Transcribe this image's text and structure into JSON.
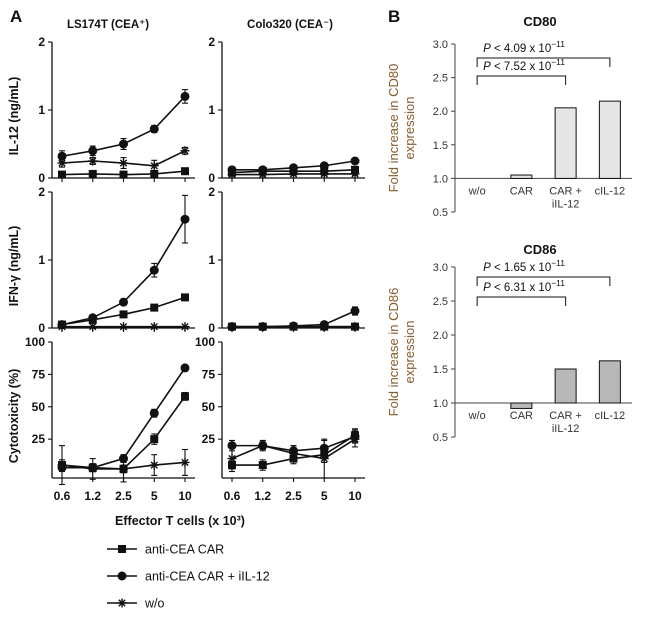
{
  "panel_a_label": "A",
  "panel_b_label": "B",
  "chart_data": [
    {
      "type": "line",
      "panel": "A",
      "column_titles": [
        "LS174T (CEA⁺)",
        "Colo320 (CEA⁻)"
      ],
      "x_ticks": [
        "0.6",
        "1.2",
        "2.5",
        "5",
        "10"
      ],
      "xlabel": "Effector T cells (x 10³)",
      "legend": [
        {
          "name": "anti-CEA CAR",
          "marker": "square"
        },
        {
          "name": "anti-CEA CAR + iIL-12",
          "marker": "circle"
        },
        {
          "name": "w/o",
          "marker": "star"
        }
      ],
      "rows": [
        {
          "ylabel": "IL-12 (ng/mL)",
          "ylim": [
            0,
            2
          ],
          "y_ticks": [
            "0",
            "1",
            "2"
          ],
          "y_tick_values": [
            0,
            1,
            2
          ],
          "panels": [
            {
              "series": [
                {
                  "marker": "square",
                  "values": [
                    0.05,
                    0.06,
                    0.05,
                    0.06,
                    0.1
                  ],
                  "err": [
                    0.02,
                    0.02,
                    0.02,
                    0.02,
                    0.03
                  ]
                },
                {
                  "marker": "circle",
                  "values": [
                    0.32,
                    0.4,
                    0.5,
                    0.72,
                    1.2
                  ],
                  "err": [
                    0.08,
                    0.07,
                    0.08,
                    0.05,
                    0.1
                  ]
                },
                {
                  "marker": "star",
                  "values": [
                    0.22,
                    0.25,
                    0.22,
                    0.18,
                    0.4
                  ],
                  "err": [
                    0.06,
                    0.05,
                    0.08,
                    0.08,
                    0.05
                  ]
                }
              ]
            },
            {
              "series": [
                {
                  "marker": "square",
                  "values": [
                    0.08,
                    0.1,
                    0.1,
                    0.1,
                    0.12
                  ],
                  "err": [
                    0.02,
                    0.02,
                    0.02,
                    0.02,
                    0.02
                  ]
                },
                {
                  "marker": "circle",
                  "values": [
                    0.12,
                    0.12,
                    0.15,
                    0.18,
                    0.25
                  ],
                  "err": [
                    0.03,
                    0.03,
                    0.03,
                    0.03,
                    0.04
                  ]
                },
                {
                  "marker": "star",
                  "values": [
                    0.05,
                    0.05,
                    0.06,
                    0.06,
                    0.06
                  ],
                  "err": [
                    0.02,
                    0.02,
                    0.02,
                    0.02,
                    0.02
                  ]
                }
              ]
            }
          ]
        },
        {
          "ylabel": "IFN-γ (ng/mL)",
          "ylim": [
            0,
            2
          ],
          "y_ticks": [
            "0",
            "1",
            "2"
          ],
          "y_tick_values": [
            0,
            1,
            2
          ],
          "panels": [
            {
              "series": [
                {
                  "marker": "square",
                  "values": [
                    0.05,
                    0.12,
                    0.2,
                    0.3,
                    0.45
                  ],
                  "err": [
                    0.02,
                    0.02,
                    0.03,
                    0.03,
                    0.04
                  ]
                },
                {
                  "marker": "circle",
                  "values": [
                    0.05,
                    0.15,
                    0.38,
                    0.85,
                    1.6
                  ],
                  "err": [
                    0.02,
                    0.03,
                    0.04,
                    0.1,
                    0.35
                  ]
                },
                {
                  "marker": "star",
                  "values": [
                    0.02,
                    0.02,
                    0.02,
                    0.02,
                    0.02
                  ],
                  "err": [
                    0.01,
                    0.01,
                    0.01,
                    0.01,
                    0.01
                  ]
                }
              ]
            },
            {
              "series": [
                {
                  "marker": "square",
                  "values": [
                    0.02,
                    0.02,
                    0.02,
                    0.02,
                    0.02
                  ],
                  "err": [
                    0.01,
                    0.01,
                    0.01,
                    0.01,
                    0.01
                  ]
                },
                {
                  "marker": "circle",
                  "values": [
                    0.02,
                    0.02,
                    0.03,
                    0.05,
                    0.25
                  ],
                  "err": [
                    0.01,
                    0.01,
                    0.01,
                    0.02,
                    0.06
                  ]
                },
                {
                  "marker": "star",
                  "values": [
                    0.02,
                    0.02,
                    0.02,
                    0.02,
                    0.02
                  ],
                  "err": [
                    0.01,
                    0.01,
                    0.01,
                    0.01,
                    0.01
                  ]
                }
              ]
            }
          ]
        },
        {
          "ylabel": "Cytotoxicity (%)",
          "ylim": [
            -5,
            100
          ],
          "y_ticks": [
            "25",
            "50",
            "75",
            "100"
          ],
          "y_tick_values": [
            25,
            50,
            75,
            100
          ],
          "panels": [
            {
              "series": [
                {
                  "marker": "square",
                  "values": [
                    5,
                    3,
                    2,
                    25,
                    58
                  ],
                  "err": [
                    4,
                    3,
                    3,
                    4,
                    3
                  ]
                },
                {
                  "marker": "circle",
                  "values": [
                    3,
                    3,
                    10,
                    45,
                    80
                  ],
                  "err": [
                    3,
                    3,
                    3,
                    3,
                    2
                  ]
                },
                {
                  "marker": "star",
                  "values": [
                    5,
                    2,
                    2,
                    5,
                    7
                  ],
                  "err": [
                    15,
                    8,
                    10,
                    8,
                    10
                  ]
                }
              ]
            },
            {
              "series": [
                {
                  "marker": "square",
                  "values": [
                    5,
                    5,
                    10,
                    13,
                    28
                  ],
                  "err": [
                    5,
                    4,
                    4,
                    6,
                    5
                  ]
                },
                {
                  "marker": "circle",
                  "values": [
                    20,
                    20,
                    16,
                    18,
                    27
                  ],
                  "err": [
                    4,
                    3,
                    4,
                    6,
                    5
                  ]
                },
                {
                  "marker": "star",
                  "values": [
                    10,
                    20,
                    14,
                    10,
                    25
                  ],
                  "err": [
                    8,
                    4,
                    6,
                    15,
                    6
                  ]
                }
              ]
            }
          ]
        }
      ]
    },
    {
      "type": "bar",
      "panel": "B",
      "title": "CD80",
      "ylabel_line1": "Fold increase in CD80",
      "ylabel_line2": "expression",
      "ylim": [
        0.5,
        3.0
      ],
      "y_ticks": [
        "0.5",
        "1.0",
        "1.5",
        "2.0",
        "2.5",
        "3.0"
      ],
      "y_tick_values": [
        0.5,
        1.0,
        1.5,
        2.0,
        2.5,
        3.0
      ],
      "categories": [
        [
          "w/o"
        ],
        [
          "CAR"
        ],
        [
          "CAR +",
          "iIL-12"
        ],
        [
          "cIL-12"
        ]
      ],
      "values": [
        1.0,
        1.05,
        2.05,
        2.15
      ],
      "annotations": [
        {
          "text": "P < 7.52 x 10",
          "exp": "−11",
          "from": 0,
          "to": 2
        },
        {
          "text": "P < 4.09 x 10",
          "exp": "−11",
          "from": 0,
          "to": 3
        }
      ]
    },
    {
      "type": "bar",
      "panel": "B",
      "title": "CD86",
      "ylabel_line1": "Fold increase in CD86",
      "ylabel_line2": "expression",
      "ylim": [
        0.5,
        3.0
      ],
      "y_ticks": [
        "0.5",
        "1.0",
        "1.5",
        "2.0",
        "2.5",
        "3.0"
      ],
      "y_tick_values": [
        0.5,
        1.0,
        1.5,
        2.0,
        2.5,
        3.0
      ],
      "categories": [
        [
          "w/o"
        ],
        [
          "CAR"
        ],
        [
          "CAR +",
          "iIL-12"
        ],
        [
          "cIL-12"
        ]
      ],
      "values": [
        1.0,
        0.92,
        1.5,
        1.62
      ],
      "annotations": [
        {
          "text": "P < 6.31 x 10",
          "exp": "−11",
          "from": 0,
          "to": 2
        },
        {
          "text": "P < 1.65 x 10",
          "exp": "−11",
          "from": 0,
          "to": 3
        }
      ]
    }
  ]
}
